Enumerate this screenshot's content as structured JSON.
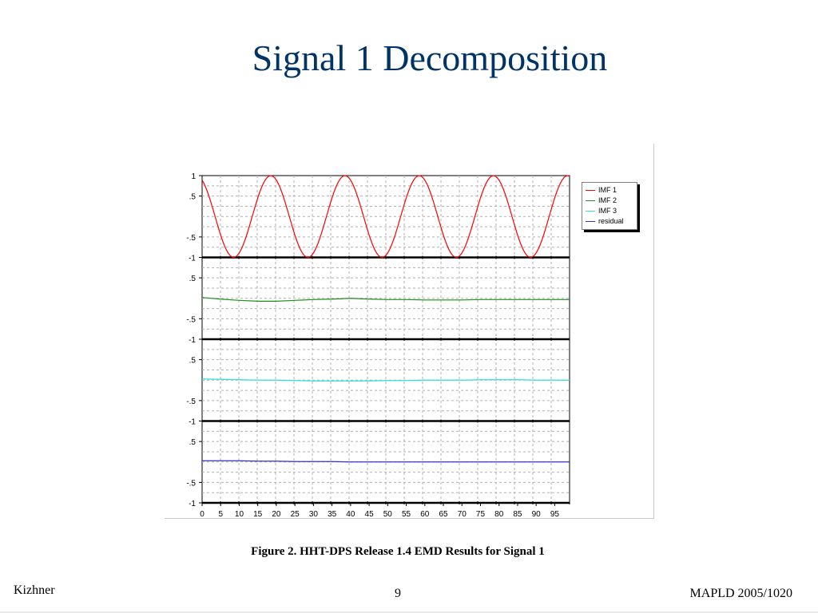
{
  "slide": {
    "title": "Signal 1 Decomposition",
    "caption": "Figure 2. HHT-DPS Release 1.4 EMD Results for Signal 1",
    "footer_left": "Kizhner",
    "footer_center": "9",
    "footer_right": "MAPLD 2005/1020"
  },
  "chart_data": {
    "type": "line",
    "title": "",
    "xlabel": "",
    "ylabel": "",
    "x_ticks": [
      "0",
      "5",
      "10",
      "15",
      "20",
      "25",
      "30",
      "35",
      "40",
      "45",
      "50",
      "55",
      "60",
      "65",
      "70",
      "75",
      "80",
      "85",
      "90",
      "95"
    ],
    "xlim": [
      0,
      99
    ],
    "grid": true,
    "legend_position": "top-right",
    "panels": [
      {
        "series": "IMF 1",
        "tick_labels": [
          "1",
          ".5",
          "-.5",
          "-1"
        ],
        "tick_values": [
          1,
          0.5,
          -0.5,
          -1
        ]
      },
      {
        "series": "IMF 2",
        "tick_labels": [
          ".5",
          "-.5",
          "-1"
        ],
        "tick_values": [
          0.5,
          -0.5,
          -1
        ]
      },
      {
        "series": "IMF 3",
        "tick_labels": [
          ".5",
          "-.5",
          "-1"
        ],
        "tick_values": [
          0.5,
          -0.5,
          -1
        ]
      },
      {
        "series": "residual",
        "tick_labels": [
          ".5",
          "-.5",
          "-1"
        ],
        "tick_values": [
          0.5,
          -0.5,
          -1
        ]
      }
    ],
    "series": [
      {
        "name": "IMF 1",
        "color": "#ff0000",
        "description": "sinusoid, period 20, amplitude 1",
        "x": [
          0,
          2,
          4,
          6,
          8,
          10,
          12,
          14,
          16,
          18,
          20,
          22,
          24,
          26,
          28,
          30,
          32,
          34,
          36,
          38,
          40,
          42,
          44,
          46,
          48,
          50,
          52,
          54,
          56,
          58,
          60,
          62,
          64,
          66,
          68,
          70,
          72,
          74,
          76,
          78,
          80,
          82,
          84,
          86,
          88,
          90,
          92,
          94,
          96,
          98,
          99
        ],
        "values": [
          0.81,
          0.31,
          -0.31,
          -0.81,
          -1.0,
          -0.81,
          -0.31,
          0.31,
          0.81,
          1.0,
          0.81,
          0.31,
          -0.31,
          -0.81,
          -1.0,
          -0.81,
          -0.31,
          0.31,
          0.81,
          1.0,
          0.81,
          0.31,
          -0.31,
          -0.81,
          -1.0,
          -0.81,
          -0.31,
          0.31,
          0.81,
          1.0,
          0.81,
          0.31,
          -0.31,
          -0.81,
          -1.0,
          -0.81,
          -0.31,
          0.31,
          0.81,
          1.0,
          0.81,
          0.31,
          -0.31,
          -0.81,
          -1.0,
          -0.81,
          -0.31,
          0.31,
          0.81,
          1.0,
          0.95
        ]
      },
      {
        "name": "IMF 2",
        "color": "#228b22",
        "x": [
          0,
          5,
          10,
          15,
          20,
          25,
          30,
          35,
          40,
          45,
          50,
          55,
          60,
          65,
          70,
          75,
          80,
          85,
          90,
          95,
          99
        ],
        "values": [
          0.02,
          -0.02,
          -0.05,
          -0.07,
          -0.07,
          -0.05,
          -0.03,
          -0.02,
          0.0,
          -0.02,
          -0.03,
          -0.03,
          -0.04,
          -0.04,
          -0.04,
          -0.03,
          -0.03,
          -0.03,
          -0.03,
          -0.03,
          -0.03
        ]
      },
      {
        "name": "IMF 3",
        "color": "#33dddd",
        "x": [
          0,
          5,
          10,
          15,
          20,
          25,
          30,
          35,
          40,
          45,
          50,
          55,
          60,
          65,
          70,
          75,
          80,
          85,
          90,
          95,
          99
        ],
        "values": [
          0.03,
          0.02,
          0.01,
          0.0,
          0.0,
          -0.01,
          -0.02,
          -0.02,
          -0.02,
          -0.02,
          -0.01,
          -0.01,
          0.0,
          0.0,
          0.0,
          0.01,
          0.01,
          0.01,
          0.0,
          0.0,
          0.0
        ]
      },
      {
        "name": "residual",
        "color": "#3333cc",
        "x": [
          0,
          5,
          10,
          15,
          20,
          25,
          30,
          35,
          40,
          45,
          50,
          55,
          60,
          65,
          70,
          75,
          80,
          85,
          90,
          95,
          99
        ],
        "values": [
          0.03,
          0.03,
          0.03,
          0.02,
          0.02,
          0.01,
          0.01,
          0.01,
          0.0,
          0.0,
          0.0,
          0.0,
          0.0,
          0.0,
          0.0,
          0.0,
          0.0,
          0.0,
          0.0,
          0.0,
          0.0
        ]
      }
    ]
  }
}
